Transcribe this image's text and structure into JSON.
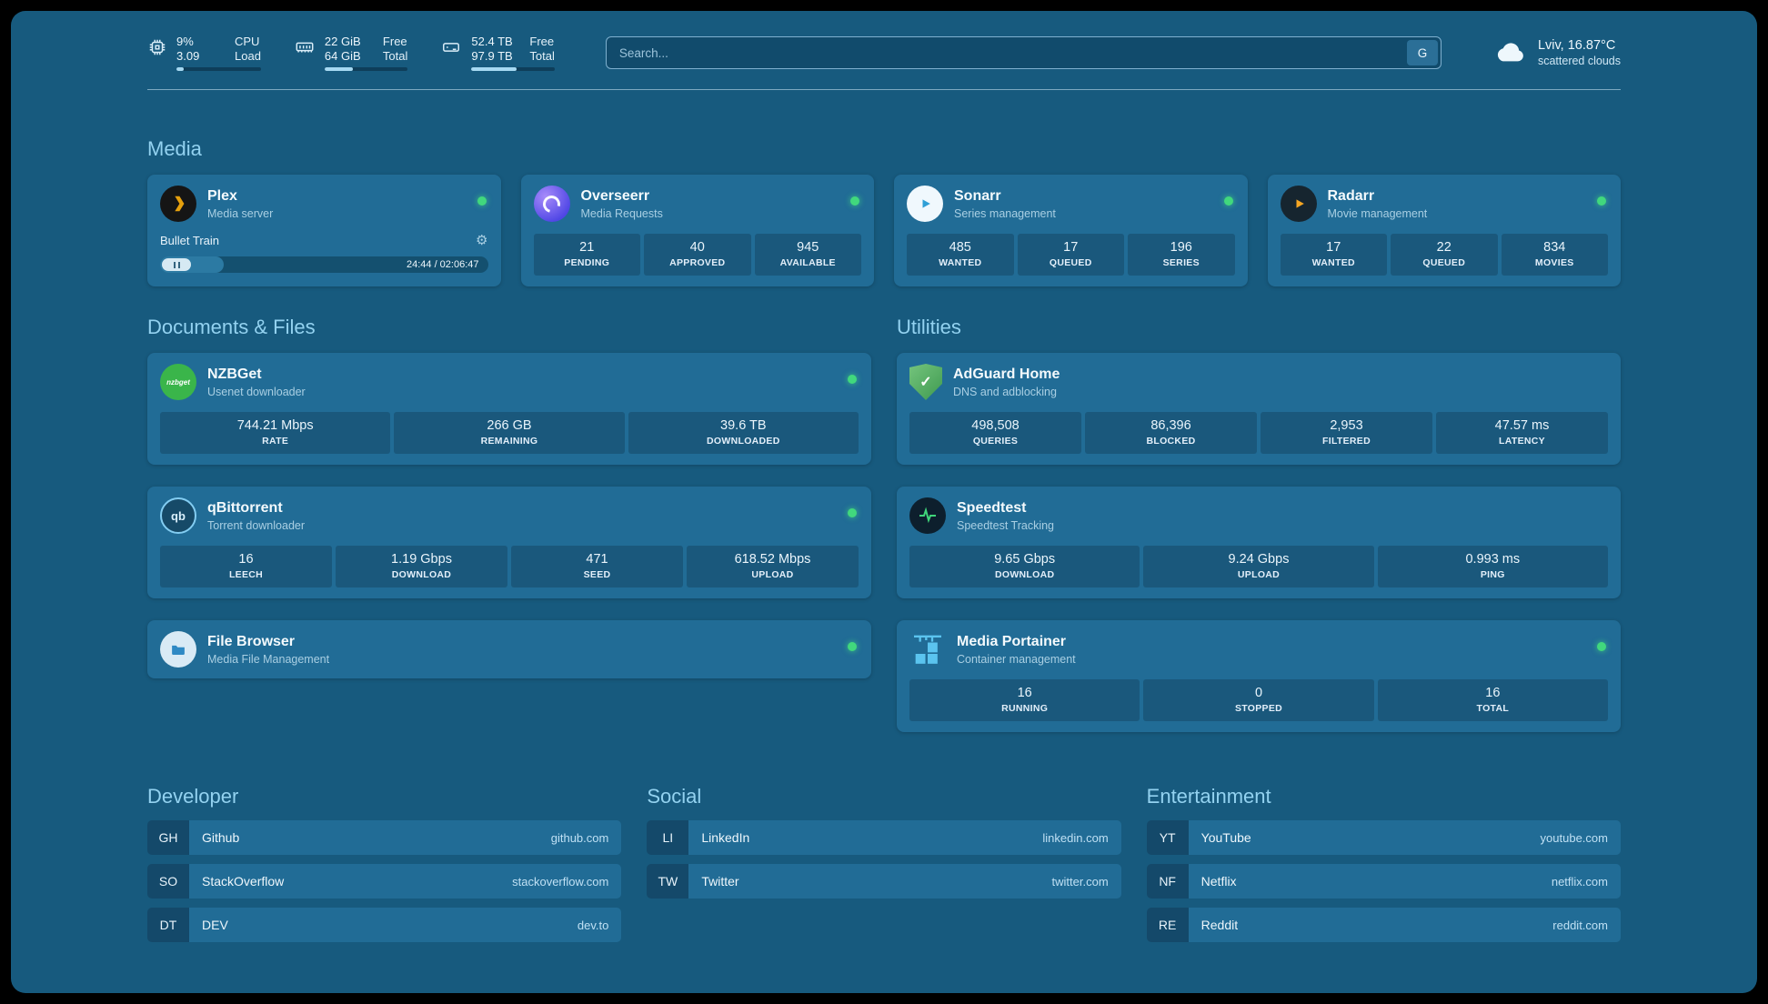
{
  "colors": {
    "bg": "#175a7e",
    "card": "#216c96",
    "tile": "#1a587c",
    "accent": "#93d2f0",
    "status-green": "#41d87d",
    "text": "#eef7fc"
  },
  "topbar": {
    "metrics": [
      {
        "icon": "cpu-icon",
        "value_top": "9%",
        "value_bottom": "3.09",
        "label_top": "CPU",
        "label_bottom": "Load",
        "progress_pct": 9
      },
      {
        "icon": "ram-icon",
        "value_top": "22 GiB",
        "value_bottom": "64 GiB",
        "label_top": "Free",
        "label_bottom": "Total",
        "progress_pct": 34
      },
      {
        "icon": "disk-icon",
        "value_top": "52.4 TB",
        "value_bottom": "97.9 TB",
        "label_top": "Free",
        "label_bottom": "Total",
        "progress_pct": 54
      }
    ],
    "search": {
      "placeholder": "Search...",
      "provider_button": "G"
    },
    "weather": {
      "icon": "cloud-icon",
      "location": "Lviv, 16.87°C",
      "condition": "scattered clouds"
    }
  },
  "section_titles": {
    "media": "Media",
    "documents": "Documents & Files",
    "utilities": "Utilities"
  },
  "services": {
    "plex": {
      "icon": "plex-icon",
      "title": "Plex",
      "subtitle": "Media server",
      "status": "online",
      "now_playing": "Bullet Train",
      "time": "24:44 / 02:06:47",
      "progress_pct": 19.5
    },
    "overseerr": {
      "icon": "overseerr-icon",
      "title": "Overseerr",
      "subtitle": "Media Requests",
      "status": "online",
      "stats": [
        {
          "value": "21",
          "label": "PENDING"
        },
        {
          "value": "40",
          "label": "APPROVED"
        },
        {
          "value": "945",
          "label": "AVAILABLE"
        }
      ]
    },
    "sonarr": {
      "icon": "sonarr-icon",
      "title": "Sonarr",
      "subtitle": "Series management",
      "status": "online",
      "stats": [
        {
          "value": "485",
          "label": "WANTED"
        },
        {
          "value": "17",
          "label": "QUEUED"
        },
        {
          "value": "196",
          "label": "SERIES"
        }
      ]
    },
    "radarr": {
      "icon": "radarr-icon",
      "title": "Radarr",
      "subtitle": "Movie management",
      "status": "online",
      "stats": [
        {
          "value": "17",
          "label": "WANTED"
        },
        {
          "value": "22",
          "label": "QUEUED"
        },
        {
          "value": "834",
          "label": "MOVIES"
        }
      ]
    },
    "nzbget": {
      "icon": "nzbget-icon",
      "icon_text": "nzbget",
      "title": "NZBGet",
      "subtitle": "Usenet downloader",
      "status": "online",
      "stats": [
        {
          "value": "744.21 Mbps",
          "label": "RATE"
        },
        {
          "value": "266 GB",
          "label": "REMAINING"
        },
        {
          "value": "39.6 TB",
          "label": "DOWNLOADED"
        }
      ]
    },
    "qbittorrent": {
      "icon": "qbittorrent-icon",
      "icon_text": "qb",
      "title": "qBittorrent",
      "subtitle": "Torrent downloader",
      "status": "online",
      "stats": [
        {
          "value": "16",
          "label": "LEECH"
        },
        {
          "value": "1.19 Gbps",
          "label": "DOWNLOAD"
        },
        {
          "value": "471",
          "label": "SEED"
        },
        {
          "value": "618.52 Mbps",
          "label": "UPLOAD"
        }
      ]
    },
    "filebrowser": {
      "icon": "filebrowser-icon",
      "title": "File Browser",
      "subtitle": "Media File Management",
      "status": "online"
    },
    "adguard": {
      "icon": "adguard-icon",
      "icon_text": "✓",
      "title": "AdGuard Home",
      "subtitle": "DNS and adblocking",
      "stats": [
        {
          "value": "498,508",
          "label": "QUERIES"
        },
        {
          "value": "86,396",
          "label": "BLOCKED"
        },
        {
          "value": "2,953",
          "label": "FILTERED"
        },
        {
          "value": "47.57 ms",
          "label": "LATENCY"
        }
      ]
    },
    "speedtest": {
      "icon": "speedtest-icon",
      "title": "Speedtest",
      "subtitle": "Speedtest Tracking",
      "stats": [
        {
          "value": "9.65 Gbps",
          "label": "DOWNLOAD"
        },
        {
          "value": "9.24 Gbps",
          "label": "UPLOAD"
        },
        {
          "value": "0.993 ms",
          "label": "PING"
        }
      ]
    },
    "portainer": {
      "icon": "portainer-icon",
      "title": "Media Portainer",
      "subtitle": "Container management",
      "status": "online",
      "stats": [
        {
          "value": "16",
          "label": "RUNNING"
        },
        {
          "value": "0",
          "label": "STOPPED"
        },
        {
          "value": "16",
          "label": "TOTAL"
        }
      ]
    }
  },
  "bookmarks": {
    "developer": {
      "title": "Developer",
      "items": [
        {
          "abbr": "GH",
          "name": "Github",
          "url": "github.com"
        },
        {
          "abbr": "SO",
          "name": "StackOverflow",
          "url": "stackoverflow.com"
        },
        {
          "abbr": "DT",
          "name": "DEV",
          "url": "dev.to"
        }
      ]
    },
    "social": {
      "title": "Social",
      "items": [
        {
          "abbr": "LI",
          "name": "LinkedIn",
          "url": "linkedin.com"
        },
        {
          "abbr": "TW",
          "name": "Twitter",
          "url": "twitter.com"
        }
      ]
    },
    "entertainment": {
      "title": "Entertainment",
      "items": [
        {
          "abbr": "YT",
          "name": "YouTube",
          "url": "youtube.com"
        },
        {
          "abbr": "NF",
          "name": "Netflix",
          "url": "netflix.com"
        },
        {
          "abbr": "RE",
          "name": "Reddit",
          "url": "reddit.com"
        }
      ]
    }
  }
}
